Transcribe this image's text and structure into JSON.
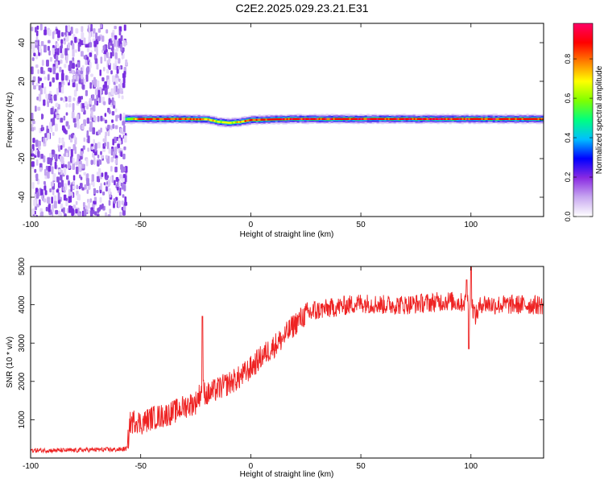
{
  "figure": {
    "title": "C2E2.2025.029.23.21.E31"
  },
  "colorbar": {
    "label": "Normalized spectral amplitude",
    "ticks": [
      "0.0",
      "0.2",
      "0.4",
      "0.6",
      "0.8"
    ],
    "tick_values": [
      0.0,
      0.2,
      0.4,
      0.6,
      0.8
    ],
    "range": [
      0,
      0.98
    ],
    "colors": [
      "#ffffff",
      "#c8a8f0",
      "#8a2be2",
      "#0000ff",
      "#00bfff",
      "#00ff80",
      "#7fff00",
      "#ffff00",
      "#ff8000",
      "#ff0000",
      "#ff0066"
    ]
  },
  "chart_data": [
    {
      "type": "heatmap",
      "xlabel": "Height of straight line (km)",
      "ylabel": "Frequency (Hz)",
      "xlim": [
        -100,
        133
      ],
      "ylim": [
        -50,
        50
      ],
      "xticks": [
        -100,
        -50,
        0,
        50,
        100
      ],
      "yticks": [
        -40,
        -20,
        0,
        20,
        40
      ],
      "grid": false,
      "noise_region_x": [
        -100,
        -57
      ],
      "signal_line": {
        "x": [
          -57,
          -50,
          -40,
          -30,
          -20,
          -15,
          -10,
          -5,
          0,
          10,
          20,
          40,
          60,
          80,
          100,
          120,
          133
        ],
        "frequency": [
          0.5,
          0.5,
          0.5,
          0.5,
          0.3,
          -1.0,
          -1.5,
          -1.0,
          0.0,
          0.3,
          0.5,
          0.5,
          0.5,
          0.5,
          0.5,
          0.5,
          0.5
        ],
        "amplitude": [
          0.6,
          0.95,
          0.9,
          0.9,
          0.85,
          0.7,
          0.75,
          0.8,
          0.9,
          0.95,
          0.95,
          0.95,
          0.95,
          0.95,
          0.95,
          0.95,
          0.95
        ]
      }
    },
    {
      "type": "line",
      "xlabel": "Height of straight line (km)",
      "ylabel": "SNR (10 * v/v)",
      "xlim": [
        -100,
        133
      ],
      "ylim": [
        0,
        5000
      ],
      "xticks": [
        -100,
        -50,
        0,
        50,
        100
      ],
      "yticks": [
        1000,
        2000,
        3000,
        4000,
        5000
      ],
      "grid": false,
      "color": "#ee2222",
      "series": [
        {
          "x": [
            -100,
            -90,
            -80,
            -70,
            -60,
            -56,
            -55,
            -52,
            -50,
            -45,
            -40,
            -35,
            -30,
            -25,
            -22,
            -20,
            -15,
            -10,
            -5,
            0,
            5,
            10,
            15,
            20,
            25,
            30,
            40,
            50,
            60,
            70,
            80,
            90,
            95,
            100,
            102,
            105,
            110,
            120,
            133
          ],
          "values": [
            200,
            200,
            200,
            220,
            220,
            250,
            900,
            1000,
            900,
            1050,
            1100,
            1200,
            1350,
            1450,
            1800,
            1650,
            1800,
            1950,
            2100,
            2350,
            2650,
            2900,
            3150,
            3500,
            3750,
            3850,
            3950,
            4050,
            4000,
            4000,
            4050,
            4100,
            4050,
            4100,
            3700,
            4050,
            4000,
            4000,
            4000
          ]
        }
      ],
      "spikes": [
        {
          "x": -22,
          "value": 3700
        },
        {
          "x": 98,
          "value": 4650
        },
        {
          "x": 100,
          "value": 5000
        },
        {
          "x": 99,
          "value": 2850
        }
      ]
    }
  ]
}
